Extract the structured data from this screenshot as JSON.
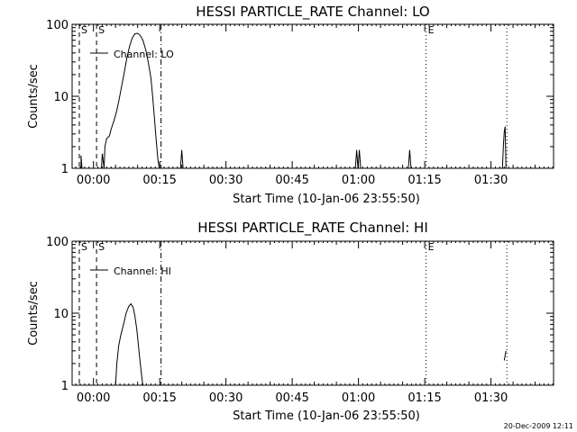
{
  "chart_data": [
    {
      "type": "line",
      "title": "HESSI PARTICLE_RATE Channel: LO",
      "ylabel": "Counts/sec",
      "xlabel": "Start Time (10-Jan-06 23:55:50)",
      "yscale": "log",
      "ylim": [
        1,
        100
      ],
      "yticks": [
        "1",
        "10",
        "100"
      ],
      "xlim_min": [
        -4.83,
        104.17
      ],
      "xticks": [
        {
          "label": "00:00",
          "min": 0
        },
        {
          "label": "00:15",
          "min": 15
        },
        {
          "label": "00:30",
          "min": 30
        },
        {
          "label": "00:45",
          "min": 45
        },
        {
          "label": "01:00",
          "min": 60
        },
        {
          "label": "01:15",
          "min": 75
        },
        {
          "label": "01:30",
          "min": 90
        }
      ],
      "legend": "Channel: LO",
      "markers": [
        {
          "label": "S",
          "min": -3.2,
          "style": "dash"
        },
        {
          "label": "S",
          "min": 0.7,
          "style": "dash"
        },
        {
          "label": "",
          "min": 15.3,
          "style": "dashdot"
        },
        {
          "label": "E",
          "min": 75.3,
          "style": "dot"
        },
        {
          "label": "",
          "min": 93.6,
          "style": "dot"
        }
      ],
      "series": [
        {
          "segments": [
            [
              [
                -2.8,
                1
              ],
              [
                -2.8,
                1.5
              ],
              [
                -2.6,
                1
              ]
            ],
            [
              [
                1.8,
                1
              ],
              [
                2.0,
                1.6
              ],
              [
                2.4,
                1
              ],
              [
                2.6,
                2
              ],
              [
                3.0,
                2.6
              ],
              [
                3.6,
                2.8
              ],
              [
                4.0,
                3.5
              ],
              [
                4.6,
                4.5
              ],
              [
                5.2,
                6
              ],
              [
                5.8,
                9
              ],
              [
                6.4,
                14
              ],
              [
                7.0,
                22
              ],
              [
                7.6,
                35
              ],
              [
                8.2,
                50
              ],
              [
                8.8,
                65
              ],
              [
                9.4,
                74
              ],
              [
                10.0,
                75
              ],
              [
                10.6,
                70
              ],
              [
                11.2,
                60
              ],
              [
                11.8,
                45
              ],
              [
                12.4,
                30
              ],
              [
                13.0,
                18
              ],
              [
                13.4,
                10
              ],
              [
                13.8,
                5
              ],
              [
                14.2,
                2.5
              ],
              [
                14.6,
                1.3
              ],
              [
                14.9,
                1
              ]
            ],
            [
              [
                19.7,
                1
              ],
              [
                20.0,
                1.8
              ],
              [
                20.3,
                1
              ]
            ],
            [
              [
                59.3,
                1
              ],
              [
                59.6,
                1.8
              ],
              [
                59.9,
                1
              ],
              [
                60.2,
                1.8
              ],
              [
                60.5,
                1
              ]
            ],
            [
              [
                71.3,
                1
              ],
              [
                71.6,
                1.8
              ],
              [
                71.9,
                1
              ]
            ],
            [
              [
                92.6,
                1
              ],
              [
                92.8,
                2.0
              ],
              [
                93.0,
                3.2
              ],
              [
                93.2,
                3.8
              ],
              [
                93.4,
                1
              ]
            ]
          ]
        }
      ]
    },
    {
      "type": "line",
      "title": "HESSI PARTICLE_RATE Channel: HI",
      "ylabel": "Counts/sec",
      "xlabel": "Start Time (10-Jan-06 23:55:50)",
      "yscale": "log",
      "ylim": [
        1,
        100
      ],
      "yticks": [
        "1",
        "10",
        "100"
      ],
      "xlim_min": [
        -4.83,
        104.17
      ],
      "xticks": [
        {
          "label": "00:00",
          "min": 0
        },
        {
          "label": "00:15",
          "min": 15
        },
        {
          "label": "00:30",
          "min": 30
        },
        {
          "label": "00:45",
          "min": 45
        },
        {
          "label": "01:00",
          "min": 60
        },
        {
          "label": "01:15",
          "min": 75
        },
        {
          "label": "01:30",
          "min": 90
        }
      ],
      "legend": "Channel: HI",
      "markers": [
        {
          "label": "S",
          "min": -3.2,
          "style": "dash"
        },
        {
          "label": "S",
          "min": 0.7,
          "style": "dash"
        },
        {
          "label": "",
          "min": 15.3,
          "style": "dashdot"
        },
        {
          "label": "E",
          "min": 75.3,
          "style": "dot"
        },
        {
          "label": "",
          "min": 93.6,
          "style": "dot"
        }
      ],
      "series": [
        {
          "segments": [
            [
              [
                5.0,
                1
              ],
              [
                5.3,
                2
              ],
              [
                5.7,
                3.5
              ],
              [
                6.2,
                5
              ],
              [
                6.8,
                7
              ],
              [
                7.4,
                10
              ],
              [
                8.0,
                12.5
              ],
              [
                8.5,
                13.5
              ],
              [
                9.0,
                12
              ],
              [
                9.4,
                9
              ],
              [
                9.8,
                6
              ],
              [
                10.2,
                3.5
              ],
              [
                10.6,
                2
              ],
              [
                11.0,
                1.2
              ],
              [
                11.2,
                1
              ]
            ],
            [
              [
                93.0,
                2.2
              ],
              [
                93.2,
                2.6
              ],
              [
                93.4,
                3.0
              ]
            ]
          ]
        }
      ]
    }
  ],
  "footer": {
    "timestamp": "20-Dec-2009 12:11"
  },
  "colors": {
    "axis": "#000000",
    "line": "#000000",
    "background": "#ffffff"
  }
}
